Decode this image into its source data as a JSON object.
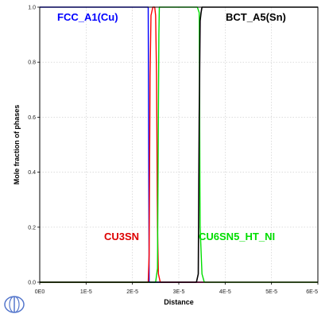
{
  "chart_data": {
    "type": "line",
    "title": "",
    "xlabel": "Distance",
    "ylabel": "Mole fraction of phases",
    "xlim": [
      0,
      6e-05
    ],
    "ylim": [
      0,
      1.0
    ],
    "grid": true,
    "x_ticks": [
      "0E0",
      "1E-5",
      "2E-5",
      "3E-5",
      "4E-5",
      "5E-5",
      "6E-5"
    ],
    "y_ticks": [
      "0.0",
      "0.2",
      "0.4",
      "0.6",
      "0.8",
      "1.0"
    ],
    "series": [
      {
        "name": "FCC_A1(Cu)",
        "color": "#0000ff",
        "x": [
          0,
          2.3e-05,
          2.32e-05,
          2.34e-05,
          2.36e-05,
          2.38e-05,
          6e-05
        ],
        "y": [
          1.0,
          1.0,
          1.0,
          1.0,
          0.0,
          0.0,
          0.0
        ]
      },
      {
        "name": "CU3SN",
        "color": "#ff0000",
        "x": [
          0,
          2.34e-05,
          2.36e-05,
          2.38e-05,
          2.4e-05,
          2.44e-05,
          2.48e-05,
          2.5e-05,
          2.52e-05,
          2.54e-05,
          2.56e-05,
          2.6e-05,
          6e-05
        ],
        "y": [
          0,
          0,
          0.1,
          0.75,
          0.97,
          1.0,
          1.0,
          0.97,
          0.75,
          0.2,
          0.03,
          0,
          0
        ]
      },
      {
        "name": "CU6SN5_HT_NI",
        "color": "#00dd00",
        "x": [
          0,
          2.5e-05,
          2.54e-05,
          2.57e-05,
          2.58e-05,
          2.62e-05,
          3e-05,
          3.4e-05,
          3.44e-05,
          3.46e-05,
          3.5e-05,
          3.55e-05,
          6e-05
        ],
        "y": [
          0,
          0,
          0.05,
          0.9,
          1.0,
          1.0,
          1.0,
          1.0,
          0.98,
          0.2,
          0.03,
          0,
          0
        ]
      },
      {
        "name": "BCT_A5(Sn)",
        "color": "#000000",
        "x": [
          0,
          3.38e-05,
          3.42e-05,
          3.44e-05,
          3.46e-05,
          3.48e-05,
          3.5e-05,
          6e-05
        ],
        "y": [
          0,
          0,
          0.03,
          0.6,
          0.95,
          0.98,
          1.0,
          1.0
        ]
      }
    ],
    "annotations": [
      {
        "text": "FCC_A1(Cu)",
        "color": "#0000ff"
      },
      {
        "text": "BCT_A5(Sn)",
        "color": "#000000"
      },
      {
        "text": "CU3SN",
        "color": "#dd0000"
      },
      {
        "text": "CU6SN5_HT_NI",
        "color": "#00dd00"
      }
    ]
  }
}
